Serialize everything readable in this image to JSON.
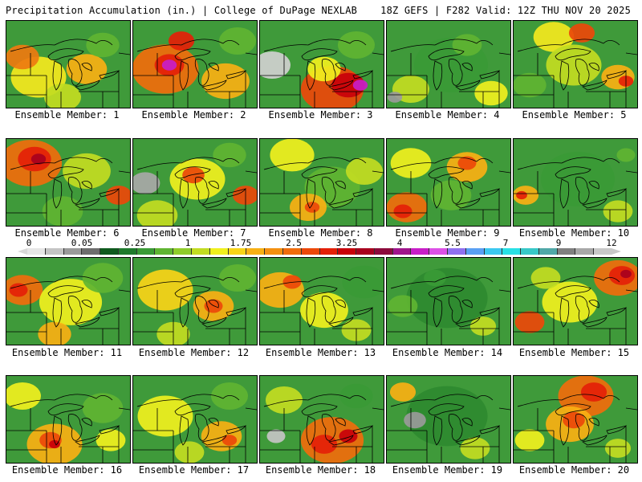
{
  "header": {
    "title": "Precipitation Accumulation (in.) | College of DuPage NEXLAB",
    "run_info": "18Z GEFS | F282 Valid: 12Z THU NOV 20 2025"
  },
  "legend": {
    "tick_labels": [
      "0",
      "0.05",
      "0.25",
      "1",
      "1.75",
      "2.5",
      "3.25",
      "4",
      "5.5",
      "7",
      "9",
      "12"
    ],
    "colors": [
      "#e6e6e6",
      "#c4c4c4",
      "#9a9a9a",
      "#6d6d6d",
      "#0f5a1e",
      "#1f7a2c",
      "#3a9a36",
      "#5fb432",
      "#8fcc2a",
      "#c2dc22",
      "#f0f01e",
      "#f8d418",
      "#f8b014",
      "#f49010",
      "#f06c0c",
      "#ec480a",
      "#e42008",
      "#c8000a",
      "#a8001e",
      "#8c0a3c",
      "#a0148c",
      "#c81ec8",
      "#dc50e6",
      "#9070f0",
      "#5aa0f4",
      "#3cc8f0",
      "#28e0e6",
      "#38c8c8",
      "#50a8a8",
      "#808080",
      "#a8a8a8",
      "#c8c8c8"
    ]
  },
  "members": [
    {
      "label": "Ensemble Member: 1",
      "blobs": [
        {
          "cx": 40,
          "cy": 70,
          "r": 30,
          "c": "#f4e81e"
        },
        {
          "cx": 20,
          "cy": 45,
          "r": 18,
          "c": "#ee7a10"
        },
        {
          "cx": 100,
          "cy": 60,
          "r": 22,
          "c": "#f8b014"
        },
        {
          "cx": 120,
          "cy": 30,
          "r": 18,
          "c": "#5fb432"
        },
        {
          "cx": 70,
          "cy": 95,
          "r": 20,
          "c": "#c2dc22"
        }
      ]
    },
    {
      "label": "Ensemble Member: 2",
      "blobs": [
        {
          "cx": 40,
          "cy": 60,
          "r": 36,
          "c": "#f06c0c"
        },
        {
          "cx": 45,
          "cy": 55,
          "r": 16,
          "c": "#e42008"
        },
        {
          "cx": 45,
          "cy": 55,
          "r": 8,
          "c": "#c81ec8"
        },
        {
          "cx": 60,
          "cy": 25,
          "r": 14,
          "c": "#e42008"
        },
        {
          "cx": 115,
          "cy": 75,
          "r": 26,
          "c": "#f8b014"
        },
        {
          "cx": 130,
          "cy": 25,
          "r": 20,
          "c": "#5fb432"
        }
      ]
    },
    {
      "label": "Ensemble Member: 3",
      "blobs": [
        {
          "cx": 15,
          "cy": 55,
          "r": 20,
          "c": "#d0d0d0"
        },
        {
          "cx": 90,
          "cy": 85,
          "r": 34,
          "c": "#ec480a"
        },
        {
          "cx": 110,
          "cy": 80,
          "r": 18,
          "c": "#c8000a"
        },
        {
          "cx": 125,
          "cy": 80,
          "r": 8,
          "c": "#c81ec8"
        },
        {
          "cx": 80,
          "cy": 60,
          "r": 18,
          "c": "#f0f01e"
        },
        {
          "cx": 120,
          "cy": 30,
          "r": 20,
          "c": "#5fb432"
        }
      ]
    },
    {
      "label": "Ensemble Member: 4",
      "blobs": [
        {
          "cx": 80,
          "cy": 55,
          "r": 40,
          "c": "#3a9a36"
        },
        {
          "cx": 30,
          "cy": 85,
          "r": 20,
          "c": "#c2dc22"
        },
        {
          "cx": 130,
          "cy": 90,
          "r": 18,
          "c": "#f0f01e"
        },
        {
          "cx": 10,
          "cy": 95,
          "r": 8,
          "c": "#9a9a9a"
        },
        {
          "cx": 100,
          "cy": 30,
          "r": 16,
          "c": "#5fb432"
        }
      ]
    },
    {
      "label": "Ensemble Member: 5",
      "blobs": [
        {
          "cx": 50,
          "cy": 20,
          "r": 22,
          "c": "#f4e81e"
        },
        {
          "cx": 85,
          "cy": 15,
          "r": 14,
          "c": "#ec480a"
        },
        {
          "cx": 75,
          "cy": 55,
          "r": 30,
          "c": "#c2dc22"
        },
        {
          "cx": 130,
          "cy": 70,
          "r": 18,
          "c": "#f8b014"
        },
        {
          "cx": 140,
          "cy": 75,
          "r": 8,
          "c": "#e42008"
        },
        {
          "cx": 20,
          "cy": 80,
          "r": 18,
          "c": "#5fb432"
        }
      ]
    },
    {
      "label": "Ensemble Member: 6",
      "blobs": [
        {
          "cx": 30,
          "cy": 30,
          "r": 34,
          "c": "#f06c0c"
        },
        {
          "cx": 35,
          "cy": 25,
          "r": 18,
          "c": "#e42008"
        },
        {
          "cx": 40,
          "cy": 25,
          "r": 8,
          "c": "#a8001e"
        },
        {
          "cx": 100,
          "cy": 40,
          "r": 26,
          "c": "#c2dc22"
        },
        {
          "cx": 140,
          "cy": 70,
          "r": 14,
          "c": "#ec480a"
        },
        {
          "cx": 70,
          "cy": 90,
          "r": 22,
          "c": "#5fb432"
        }
      ]
    },
    {
      "label": "Ensemble Member: 7",
      "blobs": [
        {
          "cx": 15,
          "cy": 55,
          "r": 16,
          "c": "#a8a8a8"
        },
        {
          "cx": 80,
          "cy": 50,
          "r": 30,
          "c": "#f0f01e"
        },
        {
          "cx": 75,
          "cy": 45,
          "r": 12,
          "c": "#ec480a"
        },
        {
          "cx": 140,
          "cy": 70,
          "r": 14,
          "c": "#ec480a"
        },
        {
          "cx": 30,
          "cy": 95,
          "r": 22,
          "c": "#c2dc22"
        },
        {
          "cx": 120,
          "cy": 20,
          "r": 18,
          "c": "#5fb432"
        }
      ]
    },
    {
      "label": "Ensemble Member: 8",
      "blobs": [
        {
          "cx": 40,
          "cy": 20,
          "r": 24,
          "c": "#f0f01e"
        },
        {
          "cx": 90,
          "cy": 60,
          "r": 30,
          "c": "#5fb432"
        },
        {
          "cx": 60,
          "cy": 85,
          "r": 20,
          "c": "#f8b014"
        },
        {
          "cx": 65,
          "cy": 85,
          "r": 8,
          "c": "#ec480a"
        },
        {
          "cx": 130,
          "cy": 40,
          "r": 20,
          "c": "#c2dc22"
        }
      ]
    },
    {
      "label": "Ensemble Member: 9",
      "blobs": [
        {
          "cx": 30,
          "cy": 30,
          "r": 22,
          "c": "#f0f01e"
        },
        {
          "cx": 100,
          "cy": 35,
          "r": 22,
          "c": "#f8b014"
        },
        {
          "cx": 100,
          "cy": 30,
          "r": 10,
          "c": "#ec480a"
        },
        {
          "cx": 25,
          "cy": 85,
          "r": 22,
          "c": "#f06c0c"
        },
        {
          "cx": 20,
          "cy": 90,
          "r": 10,
          "c": "#e42008"
        },
        {
          "cx": 80,
          "cy": 70,
          "r": 22,
          "c": "#5fb432"
        }
      ]
    },
    {
      "label": "Ensemble Member: 10",
      "blobs": [
        {
          "cx": 80,
          "cy": 50,
          "r": 40,
          "c": "#3a9a36"
        },
        {
          "cx": 15,
          "cy": 70,
          "r": 14,
          "c": "#f8b014"
        },
        {
          "cx": 10,
          "cy": 70,
          "r": 6,
          "c": "#e42008"
        },
        {
          "cx": 130,
          "cy": 90,
          "r": 16,
          "c": "#c2dc22"
        },
        {
          "cx": 140,
          "cy": 20,
          "r": 10,
          "c": "#5fb432"
        }
      ]
    },
    {
      "label": "Ensemble Member: 11",
      "blobs": [
        {
          "cx": 20,
          "cy": 40,
          "r": 22,
          "c": "#f06c0c"
        },
        {
          "cx": 15,
          "cy": 40,
          "r": 10,
          "c": "#e42008"
        },
        {
          "cx": 80,
          "cy": 55,
          "r": 34,
          "c": "#f0f01e"
        },
        {
          "cx": 120,
          "cy": 25,
          "r": 22,
          "c": "#5fb432"
        },
        {
          "cx": 60,
          "cy": 95,
          "r": 18,
          "c": "#f8b014"
        }
      ]
    },
    {
      "label": "Ensemble Member: 12",
      "blobs": [
        {
          "cx": 40,
          "cy": 40,
          "r": 30,
          "c": "#f8d418"
        },
        {
          "cx": 100,
          "cy": 60,
          "r": 22,
          "c": "#f8b014"
        },
        {
          "cx": 100,
          "cy": 60,
          "r": 10,
          "c": "#ec480a"
        },
        {
          "cx": 130,
          "cy": 25,
          "r": 20,
          "c": "#5fb432"
        },
        {
          "cx": 50,
          "cy": 95,
          "r": 18,
          "c": "#c2dc22"
        }
      ]
    },
    {
      "label": "Ensemble Member: 13",
      "blobs": [
        {
          "cx": 25,
          "cy": 40,
          "r": 26,
          "c": "#f8b014"
        },
        {
          "cx": 40,
          "cy": 30,
          "r": 10,
          "c": "#ec480a"
        },
        {
          "cx": 80,
          "cy": 65,
          "r": 26,
          "c": "#f0f01e"
        },
        {
          "cx": 130,
          "cy": 30,
          "r": 24,
          "c": "#3a9a36"
        },
        {
          "cx": 120,
          "cy": 90,
          "r": 16,
          "c": "#c2dc22"
        }
      ]
    },
    {
      "label": "Ensemble Member: 14",
      "blobs": [
        {
          "cx": 75,
          "cy": 50,
          "r": 44,
          "c": "#2e8a30"
        },
        {
          "cx": 20,
          "cy": 60,
          "r": 16,
          "c": "#5fb432"
        },
        {
          "cx": 120,
          "cy": 85,
          "r": 14,
          "c": "#c2dc22"
        },
        {
          "cx": 60,
          "cy": 25,
          "r": 12,
          "c": "#3a9a36"
        }
      ]
    },
    {
      "label": "Ensemble Member: 15",
      "blobs": [
        {
          "cx": 130,
          "cy": 25,
          "r": 26,
          "c": "#f06c0c"
        },
        {
          "cx": 135,
          "cy": 22,
          "r": 14,
          "c": "#e42008"
        },
        {
          "cx": 140,
          "cy": 20,
          "r": 6,
          "c": "#a8001e"
        },
        {
          "cx": 20,
          "cy": 80,
          "r": 16,
          "c": "#ec480a"
        },
        {
          "cx": 70,
          "cy": 55,
          "r": 30,
          "c": "#f0f01e"
        },
        {
          "cx": 40,
          "cy": 25,
          "r": 16,
          "c": "#c2dc22"
        }
      ]
    },
    {
      "label": "Ensemble Member: 16",
      "blobs": [
        {
          "cx": 60,
          "cy": 85,
          "r": 30,
          "c": "#f8b014"
        },
        {
          "cx": 55,
          "cy": 80,
          "r": 12,
          "c": "#ec480a"
        },
        {
          "cx": 60,
          "cy": 85,
          "r": 6,
          "c": "#c8000a"
        },
        {
          "cx": 20,
          "cy": 25,
          "r": 20,
          "c": "#f0f01e"
        },
        {
          "cx": 120,
          "cy": 40,
          "r": 22,
          "c": "#5fb432"
        },
        {
          "cx": 130,
          "cy": 80,
          "r": 16,
          "c": "#f0f01e"
        }
      ]
    },
    {
      "label": "Ensemble Member: 17",
      "blobs": [
        {
          "cx": 40,
          "cy": 50,
          "r": 30,
          "c": "#f0f01e"
        },
        {
          "cx": 110,
          "cy": 75,
          "r": 22,
          "c": "#f8b014"
        },
        {
          "cx": 120,
          "cy": 80,
          "r": 8,
          "c": "#ec480a"
        },
        {
          "cx": 120,
          "cy": 25,
          "r": 20,
          "c": "#5fb432"
        },
        {
          "cx": 70,
          "cy": 95,
          "r": 16,
          "c": "#c2dc22"
        }
      ]
    },
    {
      "label": "Ensemble Member: 18",
      "blobs": [
        {
          "cx": 90,
          "cy": 80,
          "r": 34,
          "c": "#f06c0c"
        },
        {
          "cx": 80,
          "cy": 85,
          "r": 14,
          "c": "#e42008"
        },
        {
          "cx": 110,
          "cy": 75,
          "r": 10,
          "c": "#c8000a"
        },
        {
          "cx": 20,
          "cy": 75,
          "r": 10,
          "c": "#c4c4c4"
        },
        {
          "cx": 30,
          "cy": 30,
          "r": 20,
          "c": "#c2dc22"
        },
        {
          "cx": 120,
          "cy": 25,
          "r": 18,
          "c": "#3a9a36"
        }
      ]
    },
    {
      "label": "Ensemble Member: 19",
      "blobs": [
        {
          "cx": 75,
          "cy": 50,
          "r": 44,
          "c": "#2e8a30"
        },
        {
          "cx": 35,
          "cy": 55,
          "r": 12,
          "c": "#9a9a9a"
        },
        {
          "cx": 20,
          "cy": 20,
          "r": 14,
          "c": "#f8b014"
        },
        {
          "cx": 110,
          "cy": 90,
          "r": 16,
          "c": "#c2dc22"
        }
      ]
    },
    {
      "label": "Ensemble Member: 20",
      "blobs": [
        {
          "cx": 90,
          "cy": 25,
          "r": 30,
          "c": "#f06c0c"
        },
        {
          "cx": 100,
          "cy": 20,
          "r": 14,
          "c": "#e42008"
        },
        {
          "cx": 70,
          "cy": 60,
          "r": 26,
          "c": "#f8b014"
        },
        {
          "cx": 75,
          "cy": 55,
          "r": 12,
          "c": "#ec480a"
        },
        {
          "cx": 20,
          "cy": 80,
          "r": 16,
          "c": "#f0f01e"
        },
        {
          "cx": 130,
          "cy": 90,
          "r": 14,
          "c": "#c2dc22"
        }
      ]
    }
  ]
}
